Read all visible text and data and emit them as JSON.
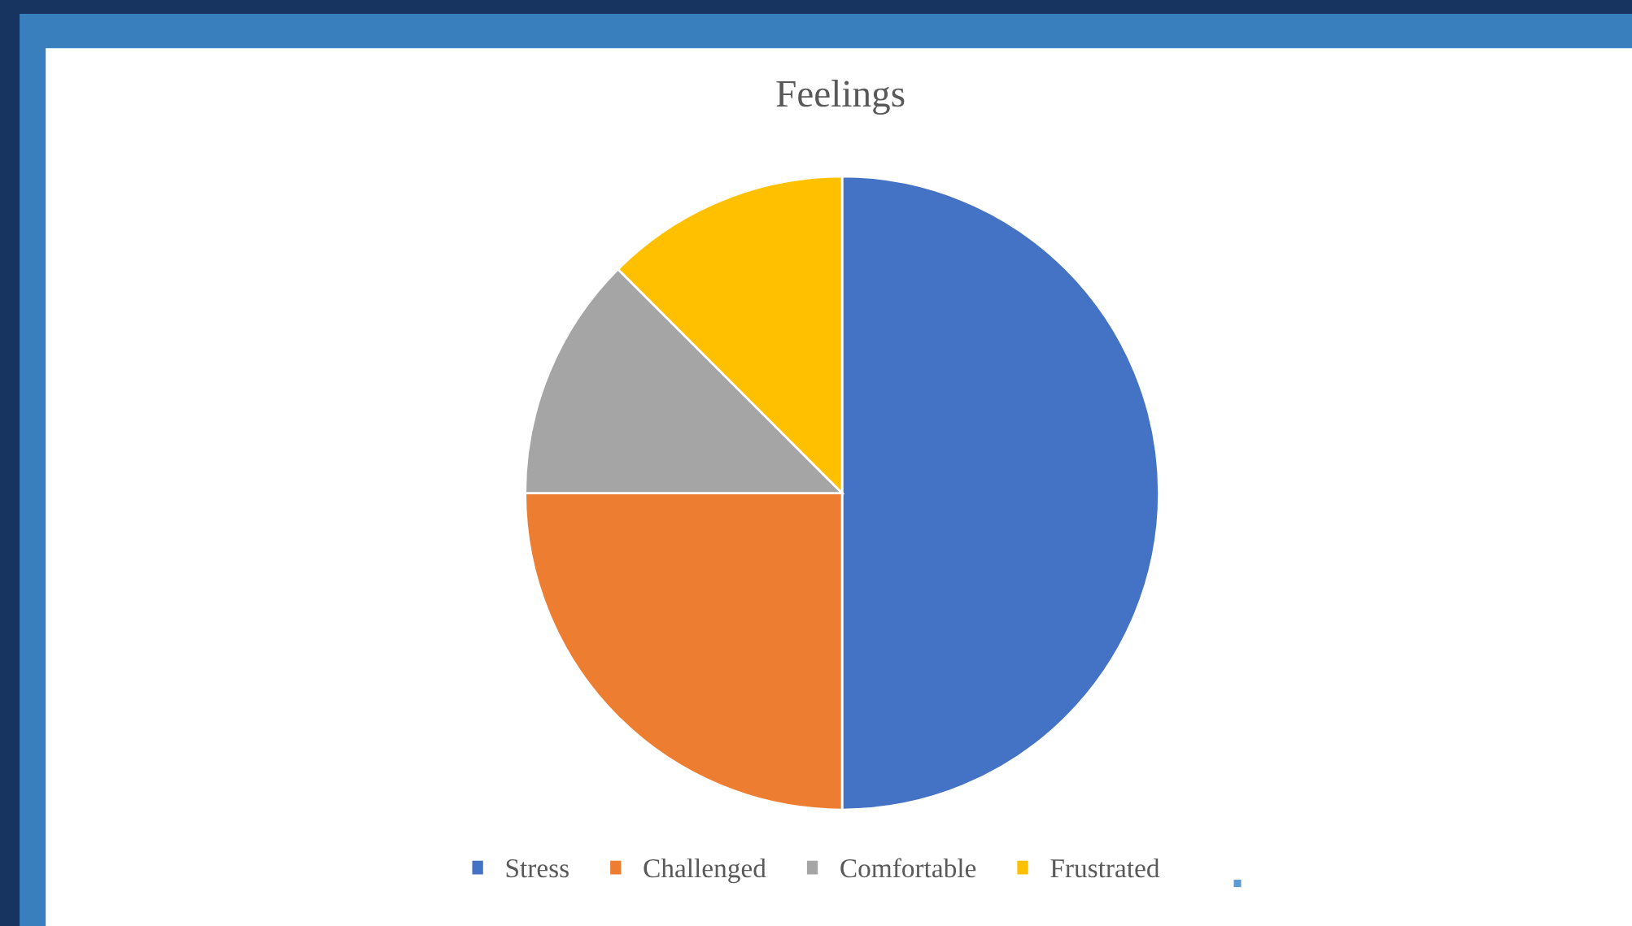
{
  "chart_data": {
    "type": "pie",
    "title": "Feelings",
    "categories": [
      "Stress",
      "Challenged",
      "Comfortable",
      "Frustrated"
    ],
    "values": [
      50,
      25,
      12.5,
      12.5
    ],
    "colors": [
      "#4472c4",
      "#ed7d31",
      "#a5a5a5",
      "#ffc000"
    ],
    "legend": "bottom"
  }
}
